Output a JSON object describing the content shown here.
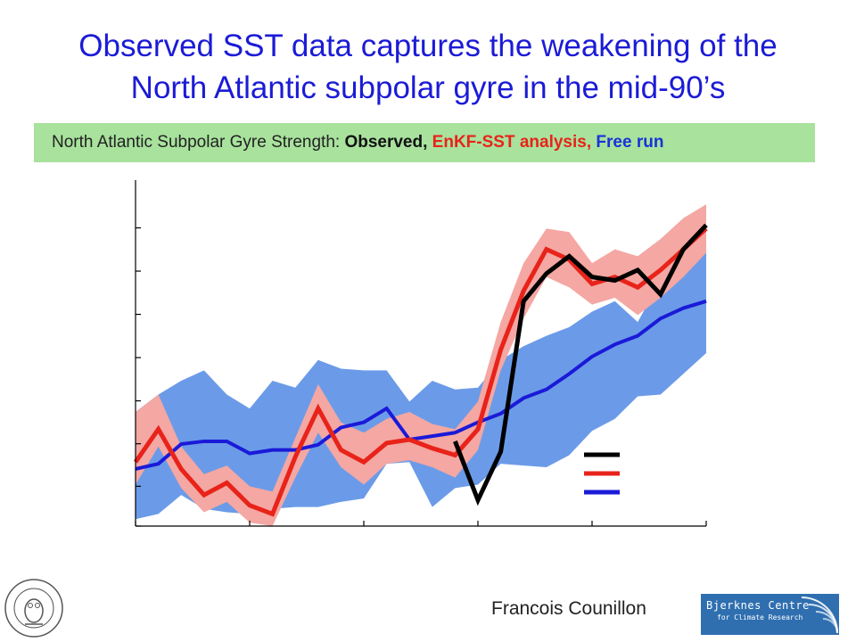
{
  "slide": {
    "title_line1": "Observed SST data captures the weakening of the",
    "title_line2": "North Atlantic subpolar gyre in the mid-90’s",
    "banner_prefix": "North Atlantic Subpolar Gyre Strength: ",
    "banner_observed": "Observed,",
    "banner_enkf": " EnKF-SST analysis,",
    "banner_free": " Free run",
    "author": "Francois Counillon",
    "logo_right_line1": "Bjerknes Centre",
    "logo_right_line2": "for Climate Research",
    "logo_right_line3": "",
    "colors": {
      "title": "#1b1bd6",
      "banner_bg": "#a8e29d",
      "observed": "#000000",
      "enkf": "#e8231a",
      "enkf_band": "#f4a7a3",
      "free": "#1a1ad8",
      "free_band": "#6b9be8"
    }
  },
  "chart_data": {
    "type": "line",
    "title": "",
    "xlabel": "",
    "ylabel": "",
    "xlim": [
      0,
      1
    ],
    "ylim": [
      0,
      1
    ],
    "grid": false,
    "legend_position": "bottom-right",
    "x_ticks": [
      {
        "value": 0.0,
        "label": ""
      },
      {
        "value": 0.2,
        "label": ""
      },
      {
        "value": 0.4,
        "label": ""
      },
      {
        "value": 0.6,
        "label": ""
      },
      {
        "value": 0.8,
        "label": ""
      },
      {
        "value": 1.0,
        "label": ""
      }
    ],
    "y_ticks": [
      {
        "value": 0.0,
        "label": ""
      },
      {
        "value": 0.115,
        "label": ""
      },
      {
        "value": 0.238,
        "label": ""
      },
      {
        "value": 0.362,
        "label": ""
      },
      {
        "value": 0.487,
        "label": ""
      },
      {
        "value": 0.612,
        "label": ""
      },
      {
        "value": 0.737,
        "label": ""
      },
      {
        "value": 0.862,
        "label": ""
      }
    ],
    "series": [
      {
        "name": "",
        "key": "free",
        "color": "#1a1ad8",
        "band_color": "#6b9be8",
        "x": [
          0.0,
          0.04,
          0.08,
          0.12,
          0.16,
          0.2,
          0.24,
          0.28,
          0.32,
          0.36,
          0.4,
          0.44,
          0.48,
          0.52,
          0.56,
          0.6,
          0.64,
          0.68,
          0.72,
          0.76,
          0.8,
          0.84,
          0.88,
          0.92,
          0.96,
          1.0
        ],
        "values": [
          0.165,
          0.18,
          0.237,
          0.245,
          0.245,
          0.21,
          0.22,
          0.22,
          0.235,
          0.285,
          0.3,
          0.34,
          0.25,
          0.26,
          0.27,
          0.3,
          0.325,
          0.37,
          0.395,
          0.44,
          0.49,
          0.525,
          0.55,
          0.6,
          0.63,
          0.65
        ],
        "band_upper": [
          0.33,
          0.38,
          0.42,
          0.45,
          0.38,
          0.34,
          0.42,
          0.4,
          0.48,
          0.455,
          0.45,
          0.45,
          0.36,
          0.42,
          0.395,
          0.4,
          0.48,
          0.52,
          0.55,
          0.575,
          0.62,
          0.65,
          0.59,
          0.71,
          0.75,
          0.79
        ],
        "band_lower": [
          0.02,
          0.035,
          0.09,
          0.05,
          0.04,
          0.035,
          0.05,
          0.055,
          0.055,
          0.07,
          0.08,
          0.18,
          0.185,
          0.055,
          0.11,
          0.12,
          0.18,
          0.175,
          0.17,
          0.205,
          0.275,
          0.31,
          0.375,
          0.38,
          0.44,
          0.5
        ]
      },
      {
        "name": "",
        "key": "enkf",
        "color": "#e8231a",
        "band_color": "#f4a7a3",
        "x": [
          0.0,
          0.04,
          0.08,
          0.12,
          0.16,
          0.2,
          0.24,
          0.28,
          0.32,
          0.36,
          0.4,
          0.44,
          0.48,
          0.52,
          0.56,
          0.6,
          0.64,
          0.68,
          0.72,
          0.76,
          0.8,
          0.84,
          0.88,
          0.92,
          0.96,
          1.0
        ],
        "values": [
          0.185,
          0.28,
          0.165,
          0.09,
          0.125,
          0.06,
          0.035,
          0.2,
          0.34,
          0.22,
          0.185,
          0.24,
          0.25,
          0.225,
          0.205,
          0.28,
          0.51,
          0.68,
          0.8,
          0.77,
          0.7,
          0.72,
          0.69,
          0.74,
          0.8,
          0.86
        ],
        "band_upper": [
          0.33,
          0.38,
          0.23,
          0.15,
          0.175,
          0.115,
          0.1,
          0.255,
          0.41,
          0.3,
          0.27,
          0.31,
          0.33,
          0.295,
          0.28,
          0.36,
          0.59,
          0.76,
          0.86,
          0.85,
          0.76,
          0.8,
          0.78,
          0.83,
          0.89,
          0.93
        ],
        "band_lower": [
          0.12,
          0.23,
          0.11,
          0.04,
          0.07,
          0.01,
          0.0,
          0.14,
          0.27,
          0.17,
          0.12,
          0.18,
          0.19,
          0.17,
          0.14,
          0.22,
          0.45,
          0.6,
          0.72,
          0.69,
          0.64,
          0.66,
          0.61,
          0.66,
          0.72,
          0.79
        ]
      },
      {
        "name": "",
        "key": "observed",
        "color": "#000000",
        "x": [
          0.56,
          0.6,
          0.64,
          0.68,
          0.72,
          0.76,
          0.8,
          0.84,
          0.88,
          0.92,
          0.96,
          1.0
        ],
        "values": [
          0.245,
          0.075,
          0.215,
          0.65,
          0.73,
          0.78,
          0.72,
          0.71,
          0.74,
          0.67,
          0.8,
          0.87
        ]
      }
    ],
    "legend": [
      {
        "key": "observed",
        "label": ""
      },
      {
        "key": "enkf",
        "label": ""
      },
      {
        "key": "free",
        "label": ""
      }
    ]
  }
}
